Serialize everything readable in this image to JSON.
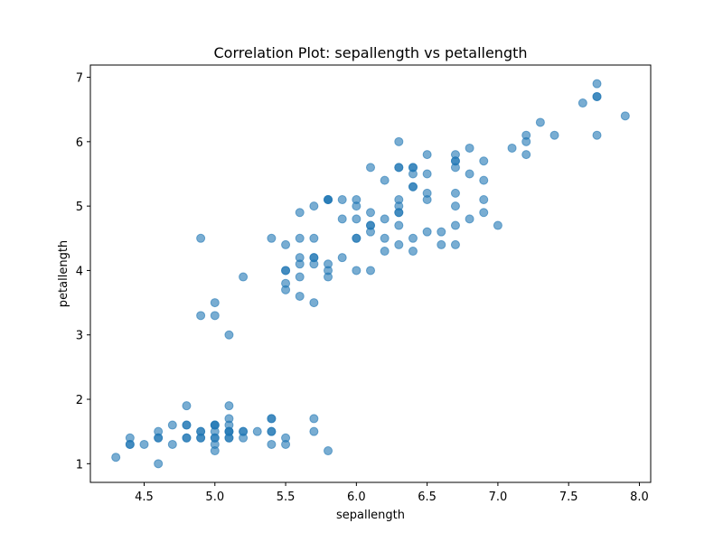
{
  "chart_data": {
    "type": "scatter",
    "title": "Correlation Plot: sepallength vs petallength",
    "xlabel": "sepallength",
    "ylabel": "petallength",
    "xlim": [
      4.12,
      8.08
    ],
    "ylim": [
      0.71,
      7.19
    ],
    "xticks": [
      4.5,
      5.0,
      5.5,
      6.0,
      6.5,
      7.0,
      7.5,
      8.0
    ],
    "xtick_labels": [
      "4.5",
      "5.0",
      "5.5",
      "6.0",
      "6.5",
      "7.0",
      "7.5",
      "8.0"
    ],
    "yticks": [
      1,
      2,
      3,
      4,
      5,
      6,
      7
    ],
    "ytick_labels": [
      "1",
      "2",
      "3",
      "4",
      "5",
      "6",
      "7"
    ],
    "grid": false,
    "marker_color": "#1f77b4",
    "marker_alpha": 0.6,
    "series": [
      {
        "name": "sepallength vs petallength",
        "points": [
          [
            5.1,
            1.4
          ],
          [
            4.9,
            1.4
          ],
          [
            4.7,
            1.3
          ],
          [
            4.6,
            1.5
          ],
          [
            5.0,
            1.4
          ],
          [
            5.4,
            1.7
          ],
          [
            4.6,
            1.4
          ],
          [
            5.0,
            1.5
          ],
          [
            4.4,
            1.4
          ],
          [
            4.9,
            1.5
          ],
          [
            5.4,
            1.5
          ],
          [
            4.8,
            1.6
          ],
          [
            4.8,
            1.4
          ],
          [
            4.3,
            1.1
          ],
          [
            5.8,
            1.2
          ],
          [
            5.7,
            1.5
          ],
          [
            5.4,
            1.3
          ],
          [
            5.1,
            1.4
          ],
          [
            5.7,
            1.7
          ],
          [
            5.1,
            1.5
          ],
          [
            5.4,
            1.7
          ],
          [
            5.1,
            1.5
          ],
          [
            4.6,
            1.0
          ],
          [
            5.1,
            1.7
          ],
          [
            4.8,
            1.9
          ],
          [
            5.0,
            1.6
          ],
          [
            5.0,
            1.6
          ],
          [
            5.2,
            1.5
          ],
          [
            5.2,
            1.4
          ],
          [
            4.7,
            1.6
          ],
          [
            4.8,
            1.6
          ],
          [
            5.4,
            1.5
          ],
          [
            5.2,
            1.5
          ],
          [
            5.5,
            1.4
          ],
          [
            4.9,
            1.5
          ],
          [
            5.0,
            1.2
          ],
          [
            5.5,
            1.3
          ],
          [
            4.9,
            1.4
          ],
          [
            4.4,
            1.3
          ],
          [
            5.1,
            1.5
          ],
          [
            5.0,
            1.3
          ],
          [
            4.5,
            1.3
          ],
          [
            4.4,
            1.3
          ],
          [
            5.0,
            1.6
          ],
          [
            5.1,
            1.9
          ],
          [
            4.8,
            1.4
          ],
          [
            5.1,
            1.6
          ],
          [
            4.6,
            1.4
          ],
          [
            5.3,
            1.5
          ],
          [
            5.0,
            1.4
          ],
          [
            7.0,
            4.7
          ],
          [
            6.4,
            4.5
          ],
          [
            6.9,
            4.9
          ],
          [
            5.5,
            4.0
          ],
          [
            6.5,
            4.6
          ],
          [
            5.7,
            4.5
          ],
          [
            6.3,
            4.7
          ],
          [
            4.9,
            3.3
          ],
          [
            6.6,
            4.6
          ],
          [
            5.2,
            3.9
          ],
          [
            5.0,
            3.5
          ],
          [
            5.9,
            4.2
          ],
          [
            6.0,
            4.0
          ],
          [
            6.1,
            4.7
          ],
          [
            5.6,
            3.6
          ],
          [
            6.7,
            4.4
          ],
          [
            5.6,
            4.5
          ],
          [
            5.8,
            4.1
          ],
          [
            6.2,
            4.5
          ],
          [
            5.6,
            3.9
          ],
          [
            5.9,
            4.8
          ],
          [
            6.1,
            4.0
          ],
          [
            6.3,
            4.9
          ],
          [
            6.1,
            4.7
          ],
          [
            6.4,
            4.3
          ],
          [
            6.6,
            4.4
          ],
          [
            6.8,
            4.8
          ],
          [
            6.7,
            5.0
          ],
          [
            6.0,
            4.5
          ],
          [
            5.7,
            3.5
          ],
          [
            5.5,
            3.8
          ],
          [
            5.5,
            3.7
          ],
          [
            5.8,
            3.9
          ],
          [
            6.0,
            5.1
          ],
          [
            5.4,
            4.5
          ],
          [
            6.0,
            4.5
          ],
          [
            6.7,
            4.7
          ],
          [
            6.3,
            4.4
          ],
          [
            5.6,
            4.1
          ],
          [
            5.5,
            4.0
          ],
          [
            5.5,
            4.4
          ],
          [
            6.1,
            4.6
          ],
          [
            5.8,
            4.0
          ],
          [
            5.0,
            3.3
          ],
          [
            5.6,
            4.2
          ],
          [
            5.7,
            4.2
          ],
          [
            5.7,
            4.2
          ],
          [
            6.2,
            4.3
          ],
          [
            5.1,
            3.0
          ],
          [
            5.7,
            4.1
          ],
          [
            6.3,
            6.0
          ],
          [
            5.8,
            5.1
          ],
          [
            7.1,
            5.9
          ],
          [
            6.3,
            5.6
          ],
          [
            6.5,
            5.8
          ],
          [
            7.6,
            6.6
          ],
          [
            4.9,
            4.5
          ],
          [
            7.3,
            6.3
          ],
          [
            6.7,
            5.8
          ],
          [
            7.2,
            6.1
          ],
          [
            6.5,
            5.1
          ],
          [
            6.4,
            5.3
          ],
          [
            6.8,
            5.5
          ],
          [
            5.7,
            5.0
          ],
          [
            5.8,
            5.1
          ],
          [
            6.4,
            5.3
          ],
          [
            6.5,
            5.5
          ],
          [
            7.7,
            6.7
          ],
          [
            7.7,
            6.9
          ],
          [
            6.0,
            5.0
          ],
          [
            6.9,
            5.7
          ],
          [
            5.6,
            4.9
          ],
          [
            7.7,
            6.7
          ],
          [
            6.3,
            4.9
          ],
          [
            6.7,
            5.7
          ],
          [
            7.2,
            6.0
          ],
          [
            6.2,
            4.8
          ],
          [
            6.1,
            4.9
          ],
          [
            6.4,
            5.6
          ],
          [
            7.2,
            5.8
          ],
          [
            7.4,
            6.1
          ],
          [
            7.9,
            6.4
          ],
          [
            6.4,
            5.6
          ],
          [
            6.3,
            5.1
          ],
          [
            6.1,
            5.6
          ],
          [
            7.7,
            6.1
          ],
          [
            6.3,
            5.6
          ],
          [
            6.4,
            5.5
          ],
          [
            6.0,
            4.8
          ],
          [
            6.9,
            5.4
          ],
          [
            6.7,
            5.6
          ],
          [
            6.9,
            5.1
          ],
          [
            5.8,
            5.1
          ],
          [
            6.8,
            5.9
          ],
          [
            6.7,
            5.7
          ],
          [
            6.7,
            5.2
          ],
          [
            6.3,
            5.0
          ],
          [
            6.5,
            5.2
          ],
          [
            6.2,
            5.4
          ],
          [
            5.9,
            5.1
          ]
        ]
      }
    ]
  }
}
